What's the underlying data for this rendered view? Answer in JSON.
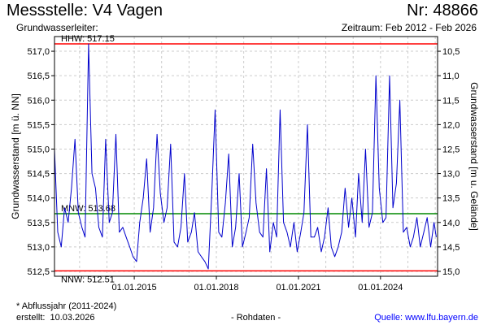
{
  "header": {
    "title": "Messstelle: V4 Vagen",
    "number": "Nr: 48866",
    "aquifer": "Grundwasserleiter:",
    "period": "Zeitraum: Feb 2012 - Feb 2026"
  },
  "footer": {
    "note": "* Abflussjahr (2011-2024)",
    "created_label": "erstellt:",
    "created_date": "10.03.2026",
    "center": "- Rohdaten -",
    "source": "Quelle: www.lfu.bayern.de"
  },
  "colors": {
    "series": "#0000cc",
    "hhw": "#ff0000",
    "nnw": "#ff0000",
    "mnw": "#008800",
    "grid": "#cccccc"
  },
  "chart_data": {
    "type": "line",
    "ylabel": "Grundwasserstand [m ü. NN]",
    "ylabel_right": "Grundwasserstand [m u. Gelände]",
    "ylim": [
      512.4,
      517.3
    ],
    "xlim": [
      "2012-02-01",
      "2026-02-01"
    ],
    "yticks": [
      "517,0",
      "516,5",
      "516,0",
      "515,5",
      "515,0",
      "514,5",
      "514,0",
      "513,5",
      "513,0",
      "512,5"
    ],
    "yticks_right": [
      "10,5",
      "11,0",
      "11,5",
      "12,0",
      "12,5",
      "13,0",
      "13,5",
      "14,0",
      "14,5",
      "15,0"
    ],
    "xticks": [
      "01.01.2015",
      "01.01.2018",
      "01.01.2021",
      "01.01.2024"
    ],
    "grid": true,
    "reference_lines": [
      {
        "label": "HHW: 517.15",
        "value": 517.15
      },
      {
        "label": "MNW: 513.68",
        "value": 513.68
      },
      {
        "label": "NNW: 512.51",
        "value": 512.51
      }
    ],
    "series": [
      {
        "x": [
          "2012-02-01",
          "2012-03-15",
          "2012-05-01",
          "2012-06-15",
          "2012-08-01",
          "2012-09-15",
          "2012-11-01",
          "2012-12-15",
          "2013-02-01",
          "2013-03-15",
          "2013-05-01",
          "2013-06-15",
          "2013-08-01",
          "2013-09-15",
          "2013-11-01",
          "2013-12-15",
          "2014-02-01",
          "2014-03-15",
          "2014-05-01",
          "2014-06-15",
          "2014-08-01",
          "2014-09-15",
          "2014-11-01",
          "2014-12-15",
          "2015-02-01",
          "2015-03-15",
          "2015-05-01",
          "2015-06-15",
          "2015-08-01",
          "2015-09-15",
          "2015-11-01",
          "2015-12-15",
          "2016-02-01",
          "2016-03-15",
          "2016-05-01",
          "2016-06-15",
          "2016-08-01",
          "2016-09-15",
          "2016-11-01",
          "2016-12-15",
          "2017-02-01",
          "2017-03-15",
          "2017-05-01",
          "2017-06-15",
          "2017-08-01",
          "2017-09-15",
          "2017-11-01",
          "2017-12-15",
          "2018-02-01",
          "2018-03-15",
          "2018-05-01",
          "2018-06-15",
          "2018-08-01",
          "2018-09-15",
          "2018-11-01",
          "2018-12-15",
          "2019-02-01",
          "2019-03-15",
          "2019-05-01",
          "2019-06-15",
          "2019-08-01",
          "2019-09-15",
          "2019-11-01",
          "2019-12-15",
          "2020-02-01",
          "2020-03-15",
          "2020-05-01",
          "2020-06-15",
          "2020-08-01",
          "2020-09-15",
          "2020-11-01",
          "2020-12-15",
          "2021-02-01",
          "2021-03-15",
          "2021-05-01",
          "2021-06-15",
          "2021-08-01",
          "2021-09-15",
          "2021-11-01",
          "2021-12-15",
          "2022-02-01",
          "2022-03-15",
          "2022-05-01",
          "2022-06-15",
          "2022-08-01",
          "2022-09-15",
          "2022-11-01",
          "2022-12-15",
          "2023-02-01",
          "2023-03-15",
          "2023-05-01",
          "2023-06-15",
          "2023-08-01",
          "2023-09-15",
          "2023-11-01",
          "2023-12-15",
          "2024-02-01",
          "2024-03-15",
          "2024-05-01",
          "2024-06-15",
          "2024-08-01",
          "2024-09-15",
          "2024-11-01",
          "2024-12-15",
          "2025-02-01",
          "2025-03-15",
          "2025-05-01",
          "2025-06-15",
          "2025-08-01",
          "2025-09-15",
          "2025-11-01",
          "2025-12-15",
          "2026-01-15"
        ],
        "values": [
          515.0,
          513.3,
          513.0,
          513.8,
          513.5,
          514.2,
          515.2,
          513.7,
          513.4,
          513.2,
          517.15,
          514.5,
          514.2,
          513.4,
          513.2,
          515.2,
          513.5,
          513.7,
          515.3,
          513.3,
          513.4,
          513.2,
          513.0,
          512.8,
          512.7,
          513.5,
          514.0,
          514.8,
          513.3,
          513.8,
          515.3,
          514.1,
          513.5,
          513.8,
          515.1,
          513.1,
          513.0,
          513.4,
          514.5,
          513.1,
          513.3,
          513.7,
          512.9,
          512.8,
          512.7,
          512.55,
          514.1,
          515.8,
          513.3,
          513.2,
          513.9,
          514.9,
          513.0,
          513.4,
          514.5,
          513.0,
          513.3,
          513.6,
          515.1,
          513.9,
          513.3,
          513.2,
          514.6,
          512.9,
          513.5,
          513.2,
          515.8,
          513.5,
          513.3,
          513.0,
          513.5,
          512.9,
          513.3,
          513.7,
          515.5,
          513.2,
          513.2,
          513.4,
          512.9,
          513.2,
          513.8,
          513.0,
          512.8,
          513.0,
          513.3,
          514.2,
          513.4,
          514.0,
          513.2,
          514.5,
          513.5,
          515.0,
          513.4,
          513.7,
          516.5,
          514.2,
          513.5,
          513.6,
          516.5,
          513.8,
          514.3,
          516.0,
          513.3,
          513.4,
          513.0,
          513.2,
          513.6,
          513.0,
          513.3,
          513.6,
          513.0,
          513.5,
          513.2
        ]
      }
    ]
  }
}
